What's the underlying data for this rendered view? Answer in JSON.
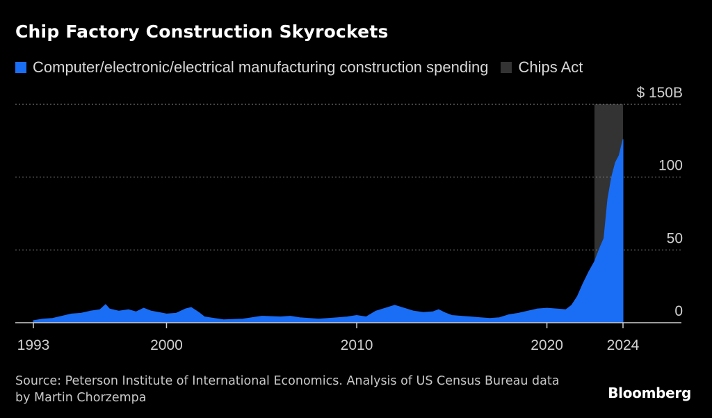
{
  "title": "Chip Factory Construction Skyrockets",
  "legend": [
    {
      "label": "Computer/electronic/electrical manufacturing construction spending",
      "color": "#1a6ef5"
    },
    {
      "label": "Chips Act",
      "color": "#333333"
    }
  ],
  "source": "Source: Peterson Institute of International Economics. Analysis of US Census Bureau data by Martin Chorzempa",
  "brand": "Bloomberg",
  "chart_data": {
    "type": "area",
    "title": "Chip Factory Construction Skyrockets",
    "xlabel": "",
    "ylabel": "",
    "x_ticks": [
      1993,
      2000,
      2010,
      2020,
      2024
    ],
    "x_tick_labels": [
      "1993",
      "2000",
      "2010",
      "2020",
      "2024"
    ],
    "y_ticks": [
      0,
      50,
      100,
      150
    ],
    "y_tick_labels": [
      "0",
      "50",
      "100",
      "$ 150B"
    ],
    "ylim": [
      0,
      150
    ],
    "xlim": [
      1993,
      2024
    ],
    "grid": "horizontal dotted",
    "legend_position": "top-left",
    "series": [
      {
        "name": "Computer/electronic/electrical manufacturing construction spending",
        "color": "#1a6ef5",
        "x": [
          1993.0,
          1993.5,
          1994.0,
          1994.5,
          1995.0,
          1995.5,
          1996.0,
          1996.5,
          1996.8,
          1997.0,
          1997.5,
          1998.0,
          1998.4,
          1998.8,
          1999.2,
          1999.6,
          2000.0,
          2000.5,
          2001.0,
          2001.3,
          2001.7,
          2002.0,
          2003.0,
          2004.0,
          2005.0,
          2006.0,
          2006.5,
          2007.0,
          2008.0,
          2009.0,
          2009.5,
          2010.0,
          2010.5,
          2011.0,
          2011.5,
          2012.0,
          2012.5,
          2013.0,
          2013.5,
          2014.0,
          2014.3,
          2014.7,
          2015.0,
          2015.5,
          2016.0,
          2016.5,
          2017.0,
          2017.5,
          2018.0,
          2018.5,
          2019.0,
          2019.5,
          2020.0,
          2020.5,
          2021.0,
          2021.3,
          2021.6,
          2021.9,
          2022.2,
          2022.5,
          2022.8,
          2023.0,
          2023.2,
          2023.4,
          2023.6,
          2023.8,
          2024.0
        ],
        "values": [
          1.5,
          2.5,
          3.0,
          4.5,
          6.0,
          6.5,
          8.0,
          9.0,
          12.5,
          9.5,
          8.0,
          9.0,
          7.5,
          10.0,
          8.0,
          7.0,
          6.0,
          6.5,
          9.5,
          10.5,
          7.0,
          4.0,
          2.0,
          2.5,
          4.5,
          4.0,
          4.5,
          3.5,
          2.5,
          3.5,
          4.0,
          5.0,
          4.0,
          8.0,
          10.0,
          12.0,
          10.0,
          8.0,
          7.0,
          7.5,
          9.0,
          6.5,
          5.0,
          4.5,
          4.0,
          3.5,
          3.0,
          3.5,
          5.5,
          6.5,
          8.0,
          9.5,
          10.0,
          9.5,
          9.0,
          12.0,
          18.0,
          27.0,
          35.0,
          42.0,
          52.0,
          58.0,
          85.0,
          100.0,
          110.0,
          115.0,
          126.0
        ]
      }
    ],
    "bands": [
      {
        "name": "Chips Act",
        "x_start": 2022.5,
        "x_end": 2024.0,
        "color": "#333333"
      }
    ]
  }
}
